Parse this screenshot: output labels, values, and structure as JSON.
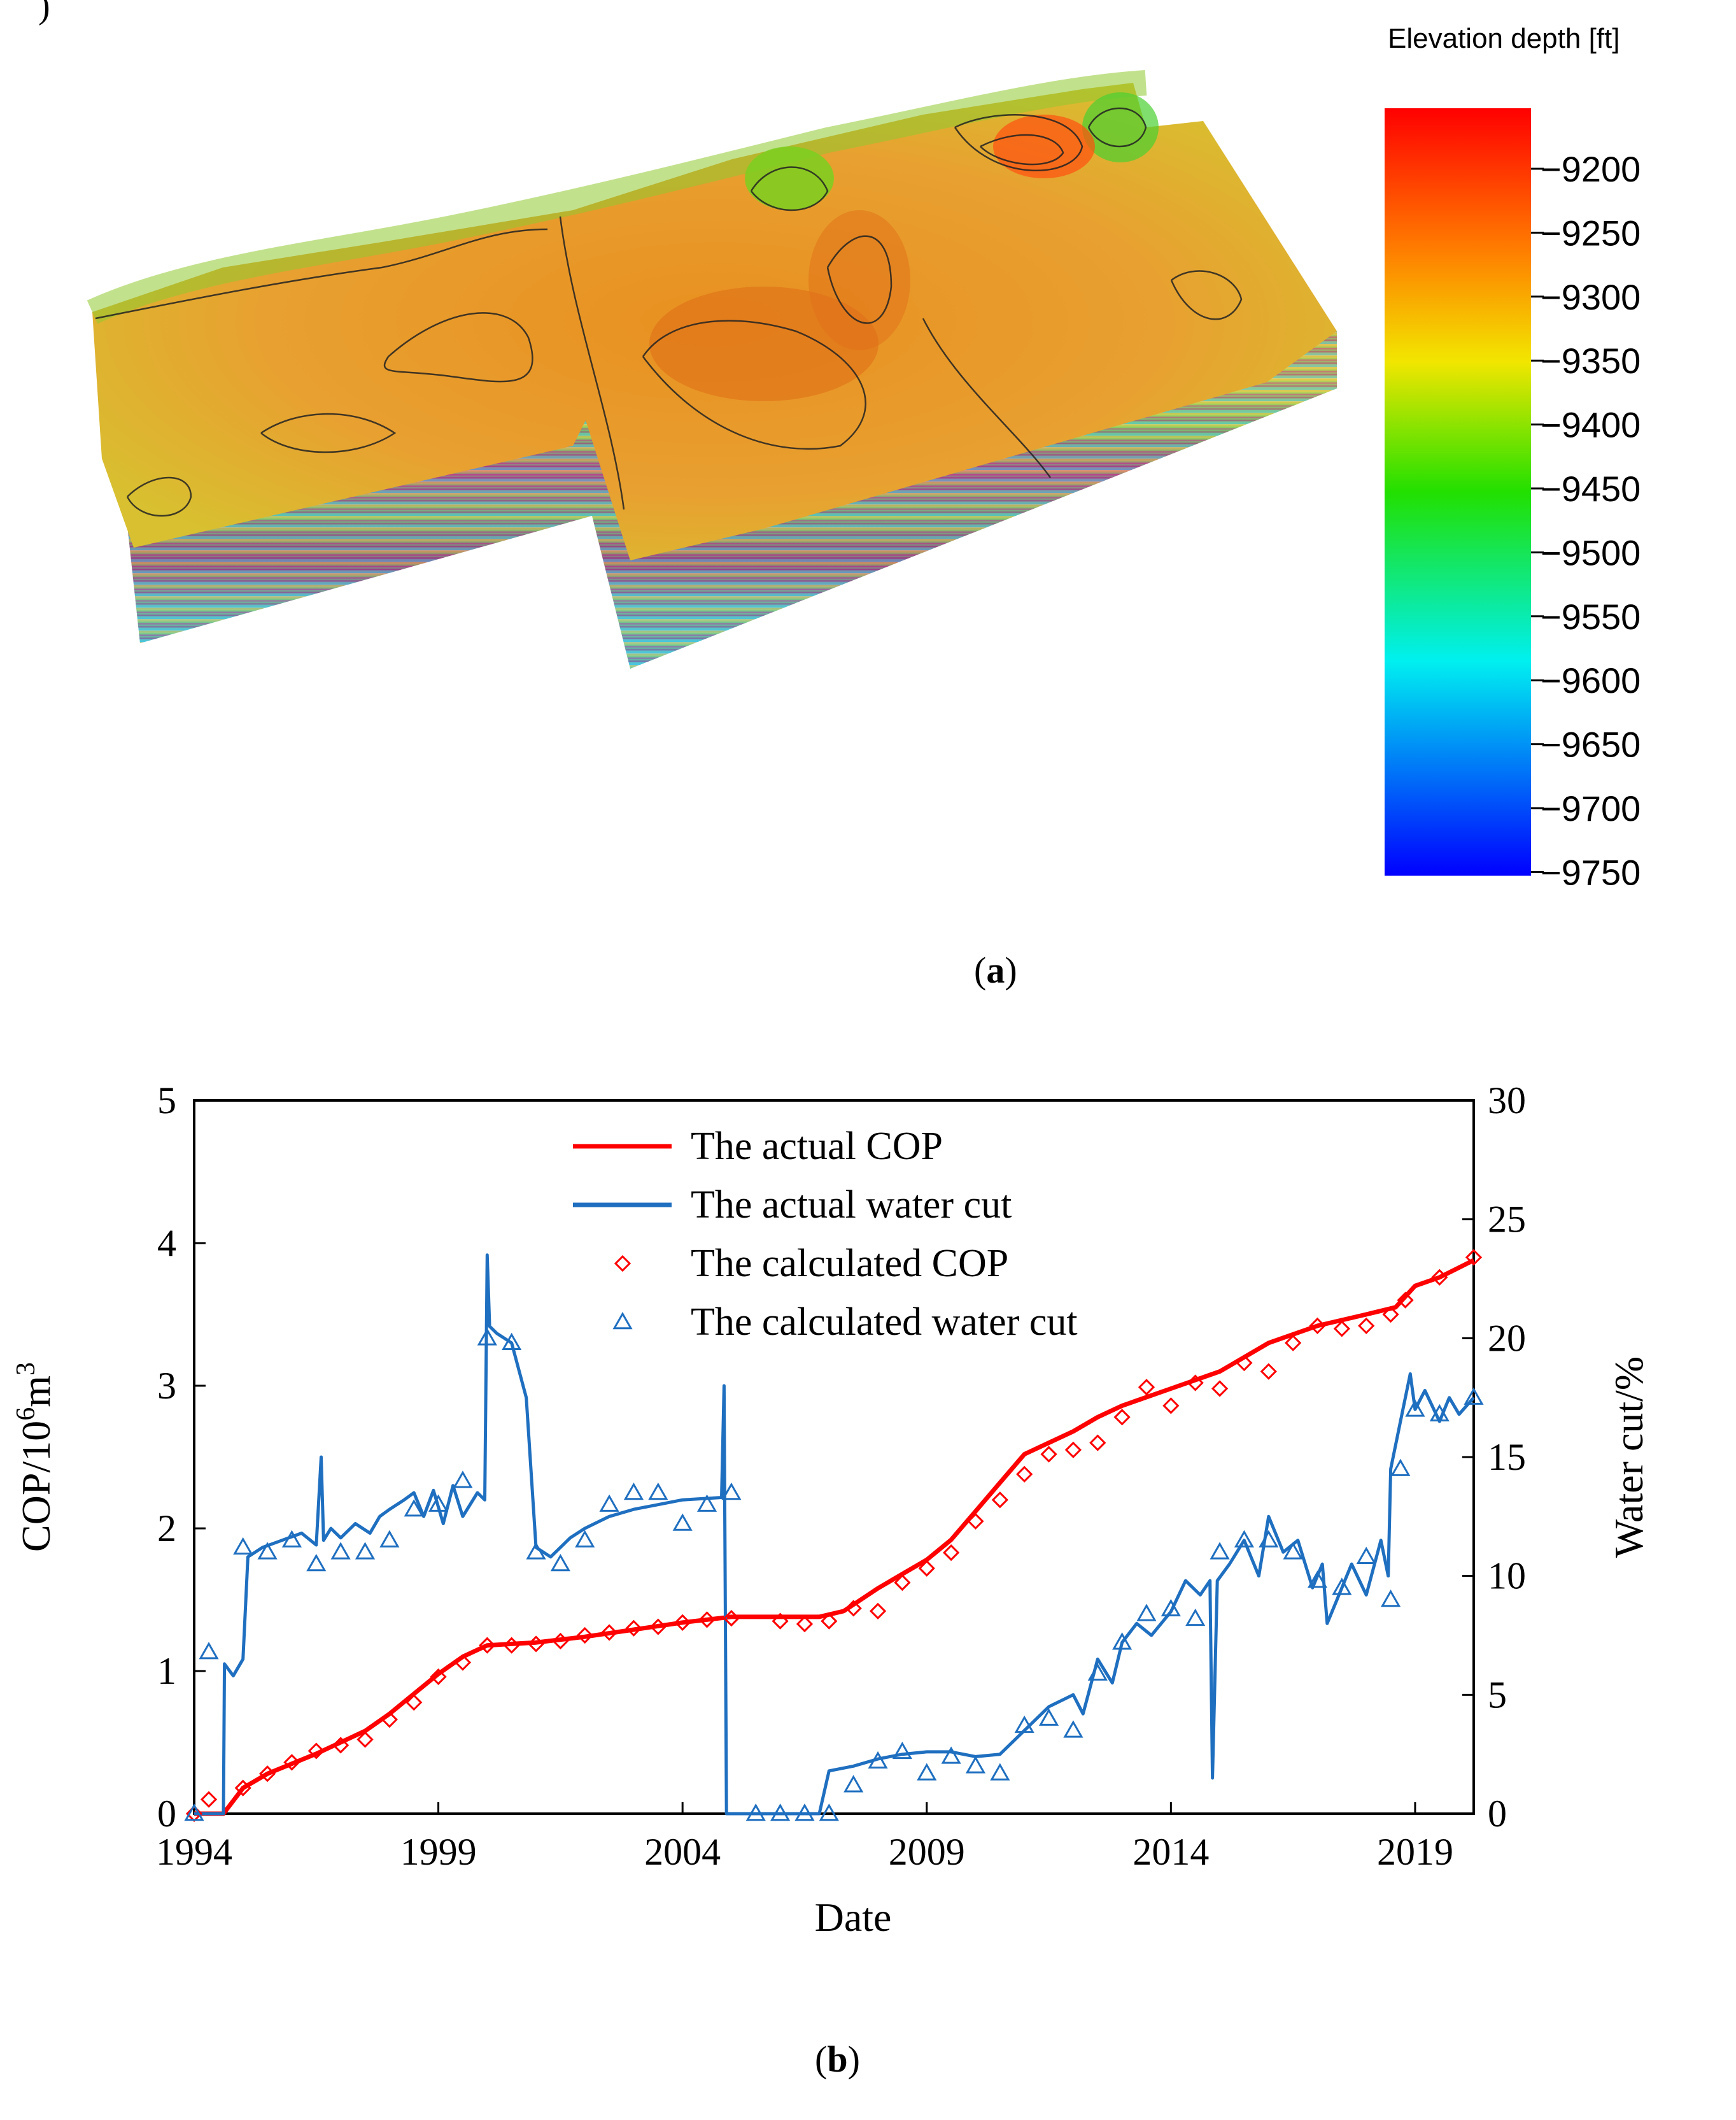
{
  "panel_a": {
    "corner_fragment": ")",
    "colorbar": {
      "title": "Elevation depth [ft]",
      "ticks": [
        "−9200",
        "−9250",
        "−9300",
        "−9350",
        "−9400",
        "−9450",
        "−9500",
        "−9550",
        "−9600",
        "−9650",
        "−9700",
        "−9750"
      ],
      "stops": [
        "#ff0000",
        "#ff7a00",
        "#f2e600",
        "#22e000",
        "#00f0f0",
        "#0000ff"
      ]
    },
    "caption_label": "a"
  },
  "panel_b": {
    "caption_label": "b"
  },
  "chart_data": {
    "type": "line",
    "xlabel": "Date",
    "ylabel_left_prefix": "COP/10",
    "ylabel_left_exp1": "6",
    "ylabel_left_mid": "m",
    "ylabel_left_exp2": "3",
    "ylabel_right": "Water cut/%",
    "xlim": [
      1994,
      2020.2
    ],
    "ylim_left": [
      0,
      5
    ],
    "ylim_right": [
      0,
      30
    ],
    "x_ticks": [
      "1994",
      "1999",
      "2004",
      "2009",
      "2014",
      "2019"
    ],
    "x_tick_values": [
      1994,
      1999,
      2004,
      2009,
      2014,
      2019
    ],
    "y_left_ticks": [
      "0",
      "1",
      "2",
      "3",
      "4",
      "5"
    ],
    "y_right_ticks": [
      "0",
      "5",
      "10",
      "15",
      "20",
      "25",
      "30"
    ],
    "colors": {
      "cop": "#ff0000",
      "water": "#1f6fc0"
    },
    "legend": [
      {
        "label": "The actual COP",
        "style": "line",
        "color": "#ff0000"
      },
      {
        "label": "The actual water cut",
        "style": "line",
        "color": "#1f6fc0"
      },
      {
        "label": "The calculated  COP",
        "style": "diamond",
        "color": "#ff0000"
      },
      {
        "label": "The calculated water cut",
        "style": "triangle",
        "color": "#1f6fc0"
      }
    ],
    "series": [
      {
        "name": "The actual COP",
        "axis": "left",
        "x": [
          1994.0,
          1994.6,
          1995.0,
          1995.5,
          1996.0,
          1996.5,
          1997.0,
          1997.5,
          1998.0,
          1998.5,
          1999.0,
          1999.5,
          2000.0,
          2000.5,
          2001.0,
          2002.0,
          2003.0,
          2004.0,
          2005.0,
          2006.0,
          2006.8,
          2007.3,
          2008.0,
          2008.5,
          2009.0,
          2009.5,
          2010.0,
          2010.5,
          2011.0,
          2011.5,
          2012.0,
          2012.5,
          2013.0,
          2014.0,
          2015.0,
          2016.0,
          2017.0,
          2018.0,
          2018.6,
          2019.0,
          2019.5,
          2020.2
        ],
        "y": [
          0.0,
          0.0,
          0.18,
          0.28,
          0.35,
          0.42,
          0.5,
          0.58,
          0.7,
          0.84,
          0.98,
          1.1,
          1.18,
          1.19,
          1.2,
          1.24,
          1.29,
          1.34,
          1.38,
          1.38,
          1.38,
          1.42,
          1.58,
          1.68,
          1.78,
          1.92,
          2.12,
          2.32,
          2.52,
          2.6,
          2.68,
          2.78,
          2.86,
          2.98,
          3.1,
          3.3,
          3.42,
          3.5,
          3.55,
          3.7,
          3.76,
          3.88
        ]
      },
      {
        "name": "The actual water cut",
        "axis": "right",
        "x": [
          1994.0,
          1994.55,
          1994.6,
          1994.62,
          1994.8,
          1995.0,
          1995.1,
          1995.4,
          1995.8,
          1996.2,
          1996.5,
          1996.6,
          1996.65,
          1996.8,
          1997.0,
          1997.3,
          1997.6,
          1997.8,
          1998.0,
          1998.3,
          1998.5,
          1998.7,
          1998.9,
          1999.1,
          1999.3,
          1999.5,
          1999.8,
          1999.95,
          2000.0,
          2000.05,
          2000.2,
          2000.5,
          2000.8,
          2001.0,
          2001.3,
          2001.7,
          2002.0,
          2002.5,
          2003.0,
          2003.5,
          2004.0,
          2004.8,
          2004.85,
          2004.9,
          2004.95,
          2005.5,
          2006.0,
          2006.5,
          2006.8,
          2007.0,
          2007.5,
          2008.0,
          2008.5,
          2009.0,
          2009.5,
          2010.0,
          2010.5,
          2011.0,
          2011.5,
          2012.0,
          2012.2,
          2012.5,
          2012.8,
          2013.0,
          2013.3,
          2013.6,
          2014.0,
          2014.3,
          2014.6,
          2014.8,
          2014.85,
          2014.95,
          2015.2,
          2015.5,
          2015.8,
          2016.0,
          2016.3,
          2016.6,
          2016.9,
          2017.1,
          2017.2,
          2017.4,
          2017.7,
          2018.0,
          2018.3,
          2018.45,
          2018.5,
          2018.7,
          2018.9,
          2019.0,
          2019.2,
          2019.5,
          2019.7,
          2019.9,
          2020.2
        ],
        "y": [
          0,
          0,
          0,
          6.3,
          5.8,
          6.5,
          10.8,
          11.2,
          11.5,
          11.8,
          11.3,
          15.0,
          11.5,
          12.0,
          11.6,
          12.2,
          11.8,
          12.5,
          12.8,
          13.2,
          13.5,
          12.5,
          13.6,
          12.2,
          13.8,
          12.5,
          13.5,
          13.2,
          23.5,
          20.5,
          20.2,
          19.8,
          17.5,
          11.2,
          10.8,
          11.6,
          12.0,
          12.5,
          12.8,
          13.0,
          13.2,
          13.3,
          18.0,
          0,
          0,
          0,
          0,
          0,
          0,
          1.8,
          2.0,
          2.3,
          2.5,
          2.6,
          2.6,
          2.4,
          2.5,
          3.5,
          4.5,
          5.0,
          4.2,
          6.5,
          5.5,
          7.2,
          8.0,
          7.5,
          8.5,
          9.8,
          9.2,
          9.8,
          1.5,
          9.8,
          10.5,
          11.5,
          10.0,
          12.5,
          11.0,
          11.5,
          9.5,
          10.5,
          8.0,
          9.0,
          10.5,
          9.2,
          11.5,
          10.0,
          14.5,
          16.5,
          18.5,
          17.0,
          17.8,
          16.5,
          17.5,
          16.8,
          17.5
        ]
      },
      {
        "name": "The calculated  COP",
        "axis": "left",
        "marker": "diamond",
        "x": [
          1994.0,
          1994.3,
          1995.0,
          1995.5,
          1996.0,
          1996.5,
          1997.0,
          1997.5,
          1998.0,
          1998.5,
          1999.0,
          1999.5,
          2000.0,
          2000.5,
          2001.0,
          2001.5,
          2002.0,
          2002.5,
          2003.0,
          2003.5,
          2004.0,
          2004.5,
          2005.0,
          2006.0,
          2006.5,
          2007.0,
          2007.5,
          2008.0,
          2008.5,
          2009.0,
          2009.5,
          2010.0,
          2010.5,
          2011.0,
          2011.5,
          2012.0,
          2012.5,
          2013.0,
          2013.5,
          2014.0,
          2014.5,
          2015.0,
          2015.5,
          2016.0,
          2016.5,
          2017.0,
          2017.5,
          2018.0,
          2018.5,
          2018.8,
          2019.5,
          2020.2
        ],
        "y": [
          0.0,
          0.1,
          0.18,
          0.28,
          0.36,
          0.44,
          0.48,
          0.52,
          0.66,
          0.78,
          0.96,
          1.06,
          1.18,
          1.18,
          1.19,
          1.21,
          1.25,
          1.27,
          1.3,
          1.31,
          1.34,
          1.36,
          1.37,
          1.35,
          1.33,
          1.35,
          1.44,
          1.42,
          1.62,
          1.72,
          1.83,
          2.05,
          2.2,
          2.38,
          2.52,
          2.55,
          2.6,
          2.78,
          2.99,
          2.86,
          3.02,
          2.98,
          3.16,
          3.1,
          3.3,
          3.42,
          3.4,
          3.42,
          3.5,
          3.6,
          3.76,
          3.9
        ]
      },
      {
        "name": "The calculated water cut",
        "axis": "right",
        "marker": "triangle",
        "x": [
          1994.0,
          1994.3,
          1995.0,
          1995.5,
          1996.0,
          1996.5,
          1997.0,
          1997.5,
          1998.0,
          1998.5,
          1999.0,
          1999.5,
          2000.0,
          2000.5,
          2001.0,
          2001.5,
          2002.0,
          2002.5,
          2003.0,
          2003.5,
          2004.0,
          2004.5,
          2005.0,
          2005.5,
          2006.0,
          2006.5,
          2007.0,
          2007.5,
          2008.0,
          2008.5,
          2009.0,
          2009.5,
          2010.0,
          2010.5,
          2011.0,
          2011.5,
          2012.0,
          2012.5,
          2013.0,
          2013.5,
          2014.0,
          2014.5,
          2015.0,
          2015.5,
          2016.0,
          2016.5,
          2017.0,
          2017.5,
          2018.0,
          2018.5,
          2018.7,
          2019.0,
          2019.5,
          2020.2
        ],
        "y": [
          0,
          6.8,
          11.2,
          11.0,
          11.5,
          10.5,
          11.0,
          11.0,
          11.5,
          12.8,
          13.0,
          14.0,
          20.0,
          19.8,
          11.0,
          10.5,
          11.5,
          13.0,
          13.5,
          13.5,
          12.2,
          13.0,
          13.5,
          0,
          0,
          0,
          0,
          1.2,
          2.2,
          2.6,
          1.7,
          2.4,
          2.0,
          1.7,
          3.7,
          4.0,
          3.5,
          5.9,
          7.2,
          8.4,
          8.6,
          8.2,
          11.0,
          11.5,
          11.5,
          11.0,
          9.8,
          9.5,
          10.8,
          9.0,
          14.5,
          17.0,
          16.8,
          17.5
        ]
      }
    ]
  }
}
